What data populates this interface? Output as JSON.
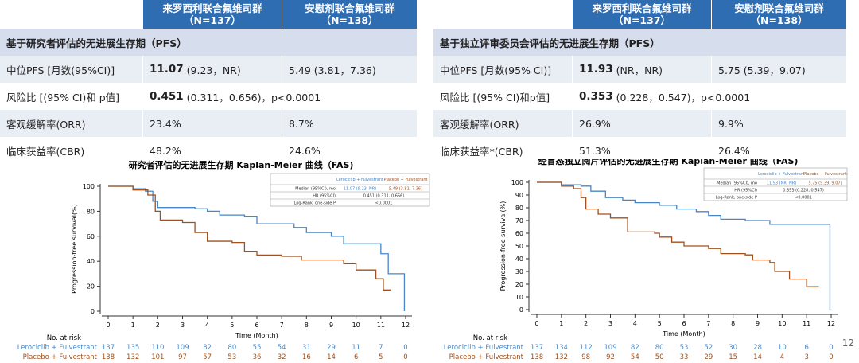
{
  "tables": [
    {
      "header": [
        {
          "title": "来罗西利联合氟维司群",
          "n": "（N=137）"
        },
        {
          "title": "安慰剂联合氟维司群",
          "n": "（N=138）"
        }
      ],
      "section": "基于研究者评估的无进展生存期（PFS）",
      "rows": [
        {
          "label": "中位PFS [月数(95%CI)]",
          "a_bold": "11.07",
          "a": " (9.23，NR)",
          "b": "5.49 (3.81，7.36)"
        },
        {
          "label": "风险比 [(95% CI)和 p值]",
          "a_bold": "0.451",
          "a": " (0.311，0.656)，p<0.0001"
        },
        {
          "label": "客观缓解率(ORR)",
          "a": "23.4%",
          "b": "8.7%"
        },
        {
          "label": "临床获益率(CBR)",
          "a": "48.2%",
          "b": "24.6%"
        }
      ]
    },
    {
      "header": [
        {
          "title": "来罗西利联合氟维司群",
          "n": "（N=137）"
        },
        {
          "title": "安慰剂联合氟维司群",
          "n": "（N=138）"
        }
      ],
      "section": "基于独立评审委员会评估的无进展生存期（PFS）",
      "rows": [
        {
          "label": "中位PFS [月数(95% CI)]",
          "a_bold": "11.93",
          "a": " (NR，NR)",
          "b": "5.75 (5.39，9.07)"
        },
        {
          "label": "风险比 [(95% CI)和p值]",
          "a_bold": "0.353",
          "a": " (0.228，0.547)，p<0.0001"
        },
        {
          "label": "客观缓解率(ORR)",
          "a": "26.9%",
          "b": "9.9%"
        },
        {
          "label": "临床获益率*(CBR)",
          "a": "51.3%",
          "b": "26.4%"
        }
      ]
    }
  ],
  "page_number": "12",
  "chart_data": [
    {
      "type": "line",
      "step": true,
      "title": "研究者评估的无进展生存期 Kaplan-Meier 曲线（FAS)",
      "x_label": "Time (Month)",
      "y_label": "Progression-free survival(%)",
      "xlim": [
        0,
        12
      ],
      "ylim": [
        0,
        100
      ],
      "xticks": [
        0,
        1,
        2,
        3,
        4,
        5,
        6,
        7,
        8,
        9,
        10,
        11,
        12
      ],
      "yticks": [
        0,
        20,
        40,
        60,
        80,
        100
      ],
      "series": [
        {
          "name": "Lerociclib + Fulvestrant",
          "color": "#4a86c5",
          "x": [
            0,
            1,
            1.5,
            1.8,
            2,
            3.5,
            4,
            4.5,
            5.5,
            6,
            7.5,
            8,
            9,
            9.5,
            11,
            11.3,
            11.95
          ],
          "values": [
            100,
            98,
            96,
            88,
            83,
            82,
            80,
            77,
            76,
            70,
            67,
            63,
            60,
            54,
            46,
            30,
            0
          ]
        },
        {
          "name": "Placebo + Fulvestrant",
          "color": "#a0501e",
          "x": [
            0,
            1,
            1.6,
            1.9,
            2.1,
            3,
            3.5,
            4,
            5,
            5.5,
            6,
            7,
            7.8,
            9.5,
            10,
            10.8,
            11.1,
            11.4
          ],
          "values": [
            100,
            97,
            93,
            80,
            73,
            71,
            63,
            56,
            55,
            48,
            45,
            44,
            41,
            38,
            33,
            26,
            17,
            17
          ]
        }
      ],
      "inset": {
        "header": [
          "Lerociclib + Fulvestrant",
          "Placebo + Fulvestrant"
        ],
        "rows": [
          [
            "Median (95%CI), mo",
            "11.07 (9.23, NR)",
            "5.49 (3.81, 7.36)"
          ],
          [
            "HR (95%CI)",
            "0.451 (0.311, 0.656)"
          ],
          [
            "Log-Rank, one-side P",
            "<0.0001"
          ]
        ]
      },
      "at_risk": {
        "label": "No. at risk",
        "rows": [
          [
            "137",
            "135",
            "110",
            "109",
            "82",
            "80",
            "55",
            "54",
            "31",
            "29",
            "11",
            "7",
            "0"
          ],
          [
            "138",
            "132",
            "101",
            "97",
            "57",
            "53",
            "36",
            "32",
            "16",
            "14",
            "6",
            "5",
            "0"
          ]
        ]
      }
    },
    {
      "type": "line",
      "step": true,
      "title": "经盲态独立阅片评估的无进展生存期 Kaplan-Meier 曲线（FAS)",
      "x_label": "Time (Month)",
      "y_label": "Progression-free survival(%)",
      "xlim": [
        0,
        12
      ],
      "ylim": [
        0,
        100
      ],
      "xticks": [
        0,
        1,
        2,
        3,
        4,
        5,
        6,
        7,
        8,
        9,
        10,
        11,
        12
      ],
      "yticks": [
        0,
        10,
        20,
        30,
        40,
        50,
        60,
        70,
        80,
        90,
        100
      ],
      "series": [
        {
          "name": "Lerociclib + Fulvestrant",
          "color": "#4a86c5",
          "x": [
            0,
            1,
            1.8,
            2.2,
            2.8,
            3.5,
            4,
            5,
            5.7,
            6.5,
            7,
            7.5,
            8.5,
            9.5,
            11.95
          ],
          "values": [
            100,
            98,
            97,
            93,
            88,
            86,
            84,
            82,
            79,
            77,
            74,
            71,
            70,
            67,
            0
          ]
        },
        {
          "name": "Placebo + Fulvestrant",
          "color": "#a0501e",
          "x": [
            0,
            1,
            1.5,
            1.8,
            2,
            2.5,
            3,
            3.7,
            4.8,
            5,
            5.5,
            6,
            7,
            7.5,
            8.5,
            8.8,
            9.5,
            9.7,
            10.3,
            11,
            11.5
          ],
          "values": [
            100,
            97,
            95,
            88,
            79,
            75,
            72,
            61,
            60,
            57,
            53,
            50,
            48,
            44,
            43,
            39,
            37,
            30,
            24,
            18,
            18
          ]
        }
      ],
      "inset": {
        "header": [
          "Lerociclib + Fulvestrant",
          "Placebo + Fulvestrant"
        ],
        "rows": [
          [
            "Median (95%CI), mo",
            "11.93 (NR, NR)",
            "5.75 (5.39, 9.07)"
          ],
          [
            "HR (95%CI)",
            "0.353 (0.228, 0.547)"
          ],
          [
            "Log-Rank, one-side P",
            "<0.0001"
          ]
        ]
      },
      "at_risk": {
        "label": "No. at risk",
        "rows": [
          [
            "137",
            "134",
            "112",
            "109",
            "82",
            "80",
            "53",
            "52",
            "30",
            "28",
            "10",
            "6",
            "0"
          ],
          [
            "138",
            "132",
            "98",
            "92",
            "54",
            "50",
            "33",
            "29",
            "15",
            "14",
            "4",
            "3",
            "0"
          ]
        ]
      }
    }
  ]
}
